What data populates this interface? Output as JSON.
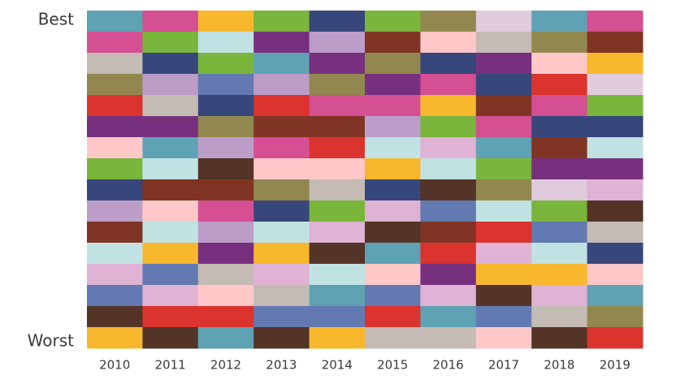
{
  "chart_data": {
    "type": "rank-grid",
    "categories": [
      "2010",
      "2011",
      "2012",
      "2013",
      "2014",
      "2015",
      "2016",
      "2017",
      "2018",
      "2019"
    ],
    "top_label": "Best",
    "bottom_label": "Worst",
    "rows": [
      [
        "#5fa2b4",
        "#d54f93",
        "#f8b82d",
        "#7ab53c",
        "#37467b",
        "#7ab53c",
        "#92884f",
        "#dfcbdc",
        "#5fa2b4",
        "#d54f93"
      ],
      [
        "#d54f93",
        "#7ab53c",
        "#c0e2e3",
        "#77307e",
        "#bb9dc8",
        "#803424",
        "#fec8c8",
        "#c4bbb4",
        "#92884f",
        "#803424"
      ],
      [
        "#c4bbb4",
        "#37467b",
        "#7ab53c",
        "#5fa2b4",
        "#77307e",
        "#92884f",
        "#37467b",
        "#77307e",
        "#fec8c8",
        "#f8b82d"
      ],
      [
        "#92884f",
        "#bb9dc8",
        "#6379b1",
        "#bb9dc8",
        "#92884f",
        "#77307e",
        "#d54f93",
        "#37467b",
        "#db332d",
        "#dfcbdc"
      ],
      [
        "#db332d",
        "#c4bbb4",
        "#37467b",
        "#db332d",
        "#d54f93",
        "#d54f93",
        "#f8b82d",
        "#803424",
        "#d54f93",
        "#7ab53c"
      ],
      [
        "#77307e",
        "#77307e",
        "#92884f",
        "#803424",
        "#803424",
        "#bb9dc8",
        "#7ab53c",
        "#d54f93",
        "#37467b",
        "#37467b"
      ],
      [
        "#fec8c8",
        "#5fa2b4",
        "#bb9dc8",
        "#d54f93",
        "#db332d",
        "#c0e2e3",
        "#e0b2d3",
        "#5fa2b4",
        "#803424",
        "#c0e2e3"
      ],
      [
        "#7ab53c",
        "#c0e2e3",
        "#533426",
        "#fec8c8",
        "#fec8c8",
        "#f8b82d",
        "#c0e2e3",
        "#7ab53c",
        "#77307e",
        "#77307e"
      ],
      [
        "#37467b",
        "#803424",
        "#803424",
        "#92884f",
        "#c4bbb4",
        "#37467b",
        "#533426",
        "#92884f",
        "#dfcbdc",
        "#e0b2d3"
      ],
      [
        "#bb9dc8",
        "#fec8c8",
        "#d54f93",
        "#37467b",
        "#7ab53c",
        "#e0b2d3",
        "#6379b1",
        "#c0e2e3",
        "#7ab53c",
        "#533426"
      ],
      [
        "#803424",
        "#c0e2e3",
        "#bb9dc8",
        "#c0e2e3",
        "#e0b2d3",
        "#533426",
        "#803424",
        "#db332d",
        "#6379b1",
        "#c4bbb4"
      ],
      [
        "#c0e2e3",
        "#f8b82d",
        "#77307e",
        "#f8b82d",
        "#533426",
        "#5fa2b4",
        "#db332d",
        "#e0b2d3",
        "#c0e2e3",
        "#37467b"
      ],
      [
        "#e0b2d3",
        "#6379b1",
        "#c4bbb4",
        "#e0b2d3",
        "#c0e2e3",
        "#fec8c8",
        "#77307e",
        "#f8b82d",
        "#f8b82d",
        "#fec8c8"
      ],
      [
        "#6379b1",
        "#e0b2d3",
        "#fec8c8",
        "#c4bbb4",
        "#5fa2b4",
        "#6379b1",
        "#e0b2d3",
        "#533426",
        "#e0b2d3",
        "#5fa2b4"
      ],
      [
        "#533426",
        "#db332d",
        "#db332d",
        "#6379b1",
        "#6379b1",
        "#db332d",
        "#5fa2b4",
        "#6379b1",
        "#c4bbb4",
        "#92884f"
      ],
      [
        "#f8b82d",
        "#533426",
        "#5fa2b4",
        "#533426",
        "#f8b82d",
        "#c4bbb4",
        "#c4bbb4",
        "#fec8c8",
        "#533426",
        "#db332d"
      ]
    ]
  }
}
